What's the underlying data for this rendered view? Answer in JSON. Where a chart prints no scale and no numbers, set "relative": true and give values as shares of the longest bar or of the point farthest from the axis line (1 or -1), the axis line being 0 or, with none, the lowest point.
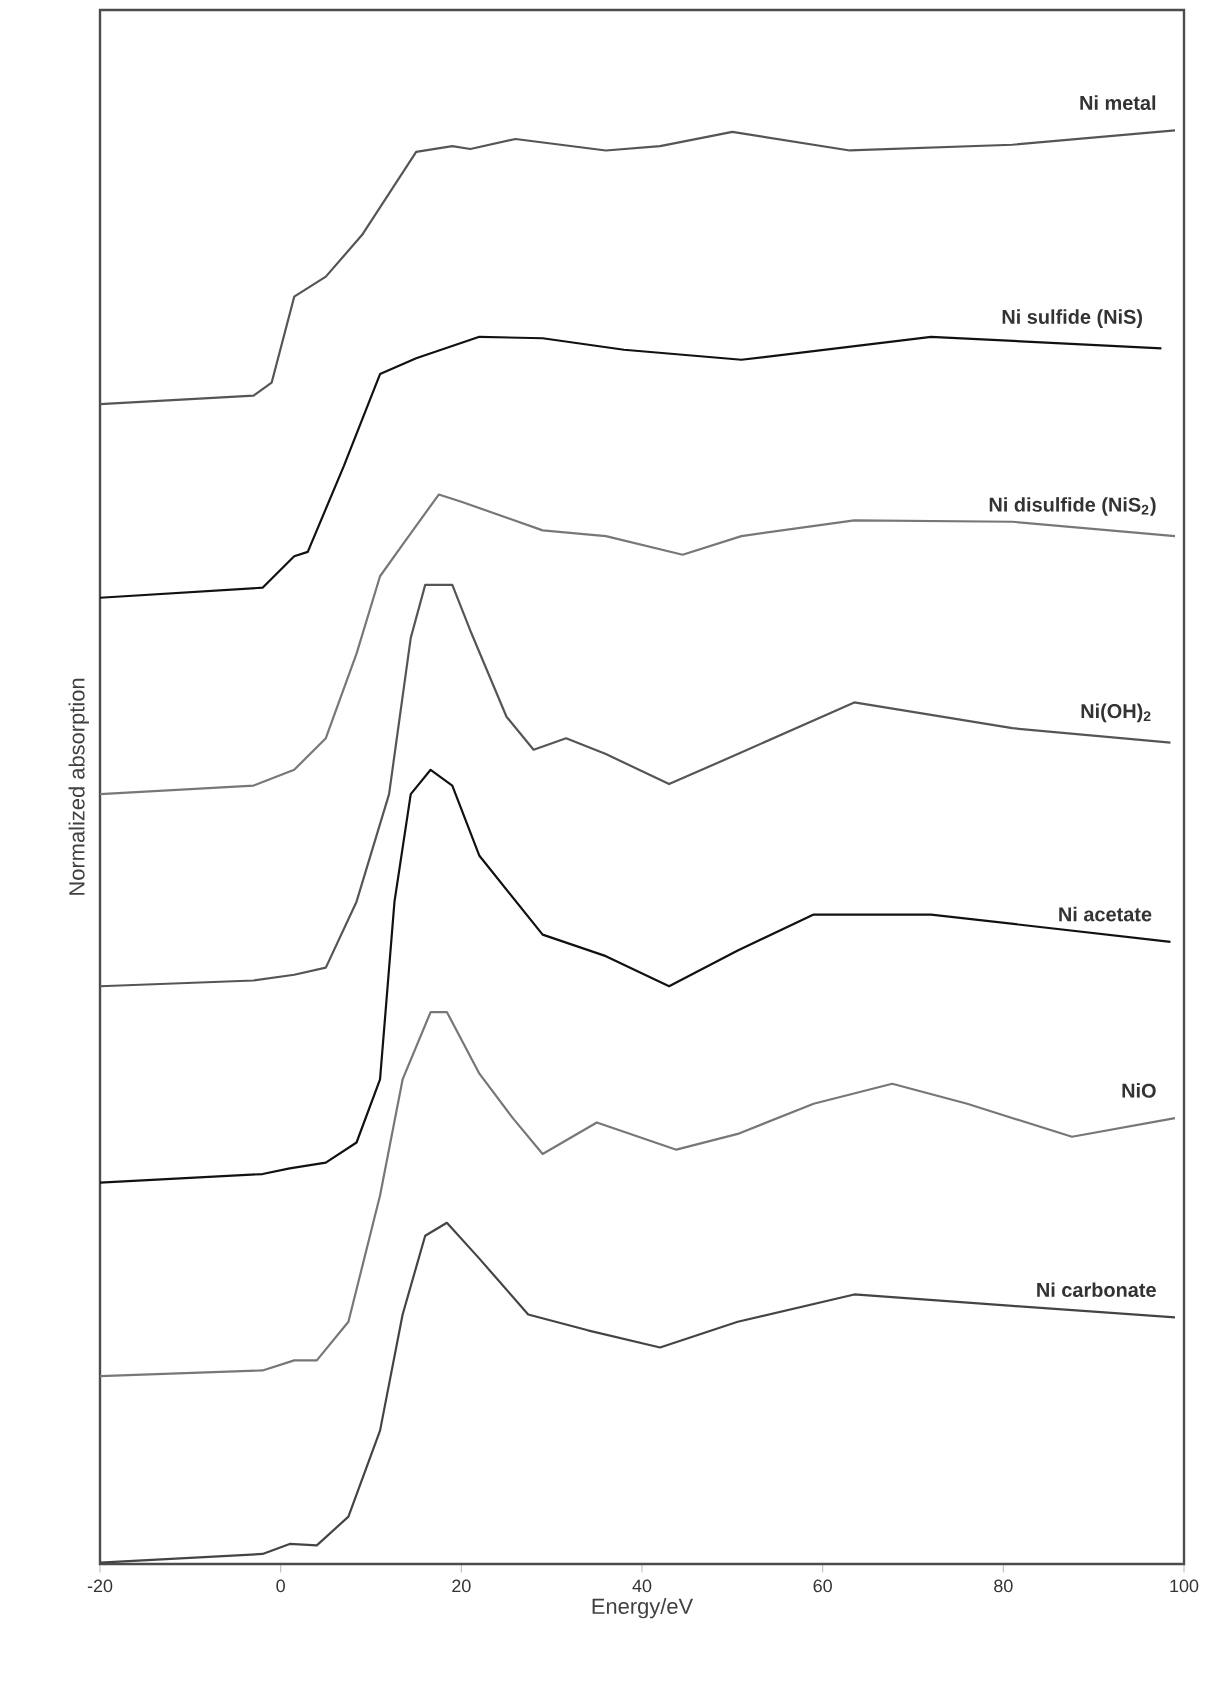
{
  "chart_data": {
    "type": "line",
    "relative": true,
    "xlabel": "Energy/eV",
    "ylabel": "Normalized absorption",
    "xlim": [
      -20,
      100
    ],
    "xticks": [
      -20,
      0,
      20,
      40,
      60,
      80,
      100
    ],
    "grid": false,
    "legend": false,
    "marker": "none",
    "line_style": "solid",
    "series": [
      {
        "name": "Ni metal",
        "color": "#555555",
        "x": [
          -20,
          -3,
          -1,
          1.5,
          5,
          9,
          15,
          19,
          21,
          26,
          31,
          36,
          42,
          50,
          63,
          81,
          99
        ],
        "values": [
          0.809,
          0.815,
          0.824,
          0.884,
          0.898,
          0.927,
          0.985,
          0.989,
          0.987,
          0.994,
          0.99,
          0.986,
          0.989,
          0.999,
          0.986,
          0.99,
          1.0
        ]
      },
      {
        "name": "Ni sulfide (NiS)",
        "color": "#111111",
        "x": [
          -20,
          -2,
          1.5,
          3,
          7,
          11,
          15,
          22,
          29,
          38,
          51,
          72,
          97.5
        ],
        "values": [
          0.674,
          0.681,
          0.703,
          0.706,
          0.766,
          0.83,
          0.841,
          0.856,
          0.855,
          0.847,
          0.84,
          0.856,
          0.848
        ]
      },
      {
        "name": "Ni disulfide (NiS$_{2}$)",
        "color": "#777777",
        "x": [
          -20,
          -3,
          1.5,
          5,
          8.4,
          11,
          13.5,
          17.5,
          20,
          29,
          36,
          44.5,
          51,
          63.5,
          81,
          99
        ],
        "values": [
          0.537,
          0.543,
          0.554,
          0.576,
          0.635,
          0.689,
          0.711,
          0.746,
          0.741,
          0.721,
          0.717,
          0.704,
          0.717,
          0.728,
          0.727,
          0.717
        ]
      },
      {
        "name": "Ni(OH)$_{2}$",
        "color": "#555555",
        "x": [
          -20,
          -3,
          1.5,
          5,
          8.4,
          12,
          14.4,
          16,
          19,
          21,
          25,
          28,
          31.6,
          36,
          43,
          50.6,
          63.5,
          81,
          98.5
        ],
        "values": [
          0.403,
          0.407,
          0.411,
          0.416,
          0.462,
          0.537,
          0.646,
          0.683,
          0.683,
          0.651,
          0.591,
          0.568,
          0.576,
          0.565,
          0.544,
          0.565,
          0.601,
          0.583,
          0.573
        ]
      },
      {
        "name": "Ni acetate",
        "color": "#111111",
        "x": [
          -20,
          -2,
          1,
          5,
          8.4,
          11,
          12.6,
          14.4,
          16.6,
          19,
          22,
          29,
          36,
          43,
          50.6,
          59,
          72,
          98.5
        ],
        "values": [
          0.266,
          0.272,
          0.276,
          0.28,
          0.294,
          0.338,
          0.462,
          0.537,
          0.554,
          0.543,
          0.494,
          0.439,
          0.424,
          0.403,
          0.428,
          0.453,
          0.453,
          0.434
        ]
      },
      {
        "name": "NiO",
        "color": "#777777",
        "x": [
          -20,
          -2,
          1.5,
          4,
          7.5,
          11,
          13.5,
          16.6,
          18.4,
          22,
          25.7,
          29,
          35,
          43.8,
          50.6,
          59,
          67.7,
          76,
          87.6,
          99
        ],
        "values": [
          0.131,
          0.135,
          0.142,
          0.142,
          0.169,
          0.257,
          0.338,
          0.385,
          0.385,
          0.342,
          0.311,
          0.286,
          0.308,
          0.289,
          0.3,
          0.321,
          0.335,
          0.321,
          0.298,
          0.311
        ]
      },
      {
        "name": "Ni carbonate",
        "color": "#444444",
        "x": [
          -20,
          -2,
          1,
          4,
          7.5,
          11,
          13.5,
          16,
          18.4,
          22,
          27.4,
          34,
          42,
          50.6,
          63.5,
          81,
          99
        ],
        "values": [
          0.001,
          0.007,
          0.014,
          0.013,
          0.033,
          0.093,
          0.174,
          0.229,
          0.238,
          0.213,
          0.174,
          0.163,
          0.151,
          0.169,
          0.188,
          0.18,
          0.172
        ]
      }
    ]
  }
}
